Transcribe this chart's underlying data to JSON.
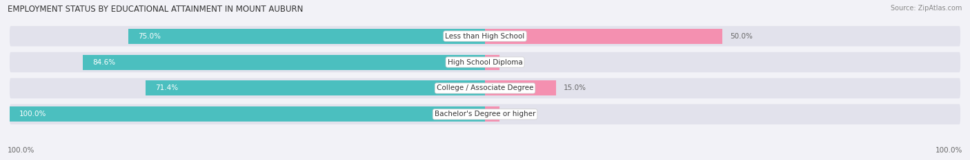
{
  "title": "EMPLOYMENT STATUS BY EDUCATIONAL ATTAINMENT IN MOUNT AUBURN",
  "source": "Source: ZipAtlas.com",
  "categories": [
    "Less than High School",
    "High School Diploma",
    "College / Associate Degree",
    "Bachelor's Degree or higher"
  ],
  "labor_force_values": [
    75.0,
    84.6,
    71.4,
    100.0
  ],
  "unemployed_values": [
    50.0,
    0.0,
    15.0,
    0.0
  ],
  "labor_force_color": "#4bbfbf",
  "unemployed_color": "#f490b0",
  "background_color": "#f2f2f7",
  "row_bg_color": "#e2e2ec",
  "title_fontsize": 8.5,
  "source_fontsize": 7.0,
  "label_fontsize": 7.5,
  "bar_label_fontsize": 7.5,
  "legend_fontsize": 8,
  "axis_label_fontsize": 7.5,
  "left_axis_label": "100.0%",
  "right_axis_label": "100.0%"
}
